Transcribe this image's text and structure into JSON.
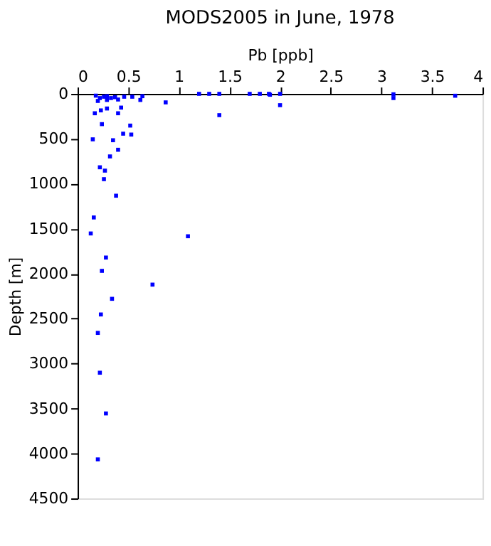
{
  "chart_data": {
    "type": "scatter",
    "title": "MODS2005 in June, 1978",
    "xlabel": "Pb [ppb]",
    "ylabel": "Depth [m]",
    "x": [
      0.17,
      0.24,
      0.4,
      0.43,
      0.29,
      0.52,
      0.53,
      0.45,
      0.15,
      0.35,
      0.4,
      0.32,
      0.22,
      0.27,
      0.26,
      0.38,
      0.16,
      0.87,
      1.4,
      1.2,
      1.3,
      1.4,
      1.7,
      1.8,
      1.89,
      0.18,
      0.22,
      0.26,
      0.29,
      0.33,
      0.37,
      0.4,
      0.46,
      0.54,
      0.62,
      0.64,
      0.2,
      0.29,
      0.23,
      1.9,
      2.0,
      2.0,
      3.12,
      3.12,
      3.73,
      0.13,
      1.09,
      0.28,
      0.24,
      0.74,
      0.34,
      0.23,
      0.2,
      0.22,
      0.28,
      0.2
    ],
    "series": [
      {
        "color": "#0000ff",
        "values": [
          216,
          337,
          216,
          153,
          163,
          353,
          453,
          443,
          506,
          516,
          622,
          696,
          817,
          854,
          949,
          1133,
          1375,
          95,
          237,
          0,
          0,
          0,
          0,
          0,
          0,
          20,
          47,
          32,
          26,
          47,
          37,
          63,
          32,
          32,
          68,
          26,
          79,
          68,
          184,
          10,
          0,
          126,
          5,
          47,
          21,
          1553,
          1584,
          1821,
          1969,
          2122,
          2280,
          2454,
          2659,
          3102,
          3555,
          4066
        ]
      }
    ],
    "xlim": [
      0,
      4
    ],
    "xticks": [
      0,
      0.5,
      1,
      1.5,
      2,
      2.5,
      3,
      3.5,
      4
    ],
    "ylim": [
      4500,
      0
    ],
    "yticks": [
      0,
      500,
      1000,
      1500,
      2000,
      2500,
      3000,
      3500,
      4000,
      4500
    ],
    "marker": "square",
    "grid": false,
    "legend": false
  }
}
